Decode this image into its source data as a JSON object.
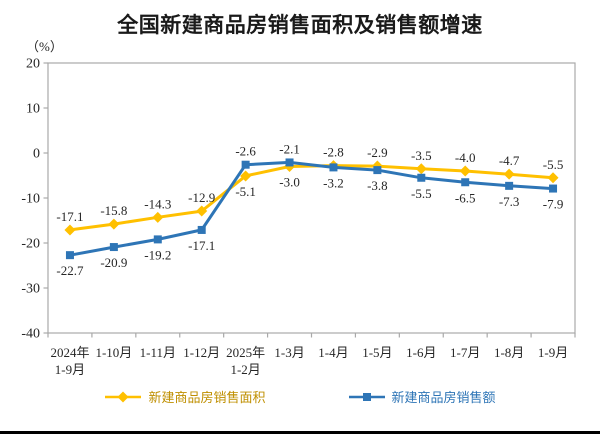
{
  "chart_data": {
    "type": "line",
    "title": "全国新建商品房销售面积及销售额增速",
    "unit_label": "（%）",
    "ylim": [
      -40,
      20
    ],
    "y_ticks": [
      20,
      10,
      0,
      -10,
      -20,
      -30,
      -40
    ],
    "grid": false,
    "legend_position": "bottom",
    "categories": [
      "2024年\n1-9月",
      "1-10月",
      "1-11月",
      "1-12月",
      "2025年\n1-2月",
      "1-3月",
      "1-4月",
      "1-5月",
      "1-6月",
      "1-7月",
      "1-8月",
      "1-9月"
    ],
    "series": [
      {
        "name": "新建商品房销售面积",
        "color": "#FFC000",
        "label_color": "#BF8F00",
        "marker": "diamond",
        "values": [
          -17.1,
          -15.8,
          -14.3,
          -12.9,
          -5.1,
          -3.0,
          -2.8,
          -2.9,
          -3.5,
          -4.0,
          -4.7,
          -5.5
        ]
      },
      {
        "name": "新建商品房销售额",
        "color": "#2E75B6",
        "label_color": "#2E75B6",
        "marker": "square",
        "values": [
          -22.7,
          -20.9,
          -19.2,
          -17.1,
          -2.6,
          -2.1,
          -3.2,
          -3.8,
          -5.5,
          -6.5,
          -7.3,
          -7.9
        ]
      }
    ],
    "axis_color": "#A9A9A9",
    "text_color": "#262626"
  },
  "divider_color": "#000000"
}
